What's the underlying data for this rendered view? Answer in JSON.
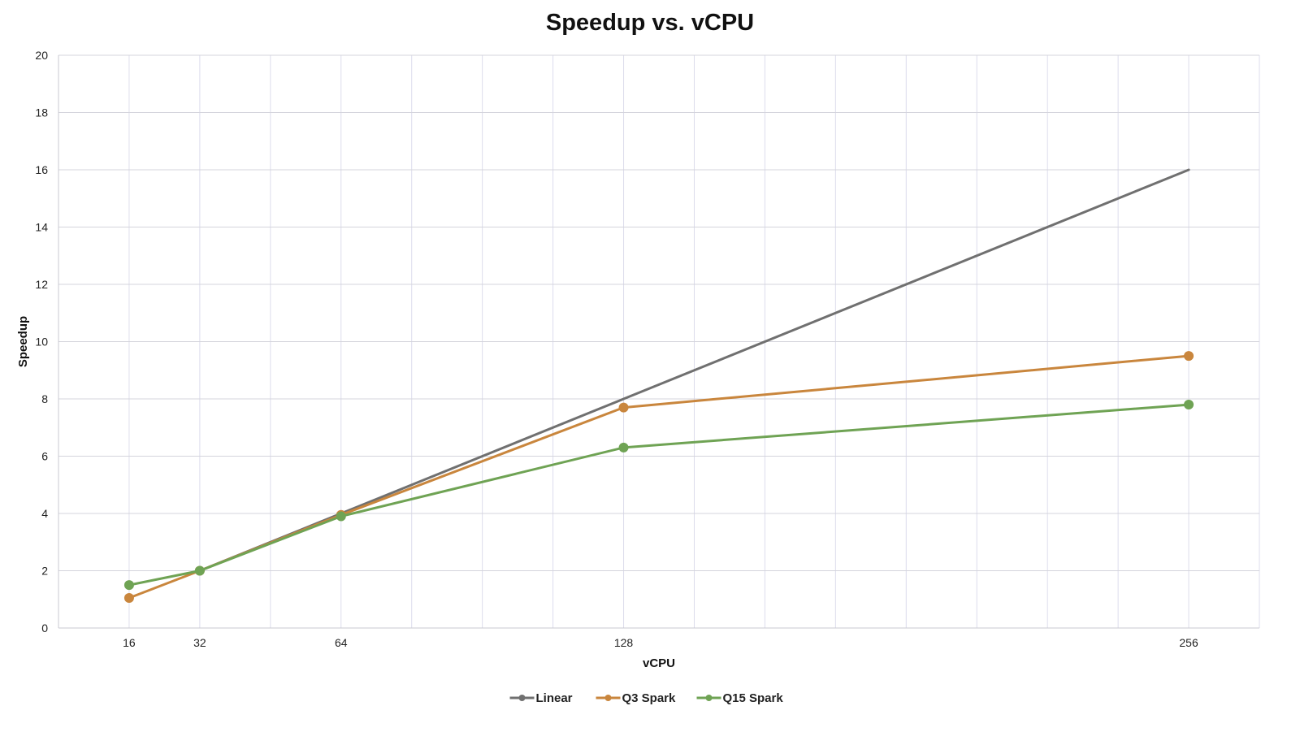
{
  "chart_data": {
    "type": "line",
    "title": "Speedup vs. vCPU",
    "xlabel": "vCPU",
    "ylabel": "Speedup",
    "xlim": [
      0,
      272
    ],
    "ylim": [
      0,
      20
    ],
    "x_ticks": [
      16,
      32,
      64,
      128,
      256
    ],
    "y_ticks": [
      0,
      2,
      4,
      6,
      8,
      10,
      12,
      14,
      16,
      18,
      20
    ],
    "grid": true,
    "legend_position": "bottom",
    "series": [
      {
        "name": "Linear",
        "color": "#707070",
        "markers": false,
        "points": [
          [
            32,
            2
          ],
          [
            64,
            4
          ],
          [
            128,
            8
          ],
          [
            256,
            16
          ]
        ]
      },
      {
        "name": "Q3 Spark",
        "color": "#C9863D",
        "markers": true,
        "points": [
          [
            16,
            1.05
          ],
          [
            32,
            2
          ],
          [
            64,
            3.95
          ],
          [
            128,
            7.7
          ],
          [
            256,
            9.5
          ]
        ]
      },
      {
        "name": "Q15 Spark",
        "color": "#6FA354",
        "markers": true,
        "points": [
          [
            16,
            1.5
          ],
          [
            32,
            2
          ],
          [
            64,
            3.9
          ],
          [
            128,
            6.3
          ],
          [
            256,
            7.8
          ]
        ]
      }
    ]
  }
}
